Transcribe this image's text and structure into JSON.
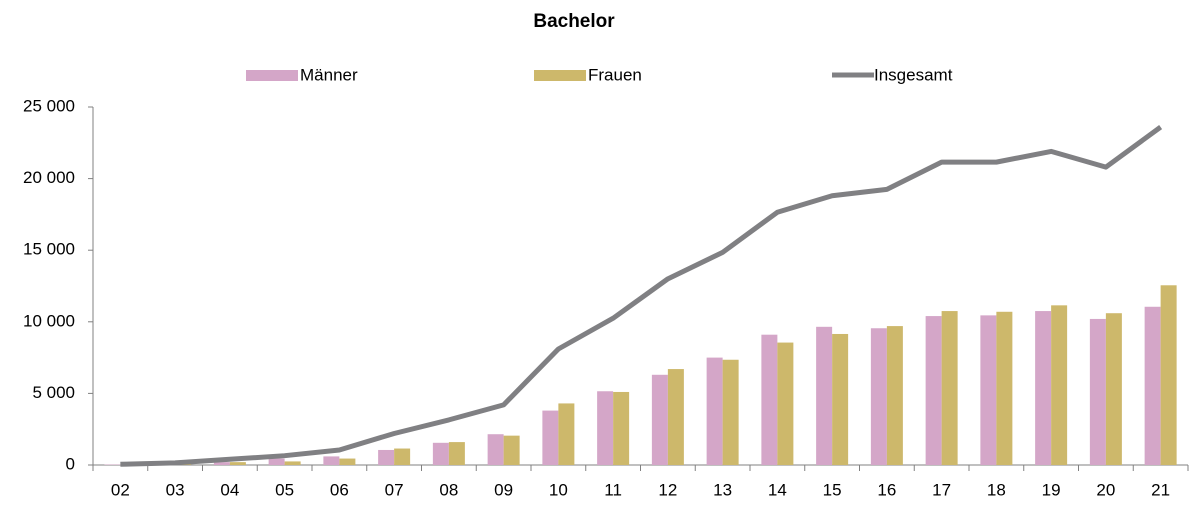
{
  "chart_data": {
    "type": "bar",
    "title": "Bachelor",
    "categories": [
      "02",
      "03",
      "04",
      "05",
      "06",
      "07",
      "08",
      "09",
      "10",
      "11",
      "12",
      "13",
      "14",
      "15",
      "16",
      "17",
      "18",
      "19",
      "20",
      "21"
    ],
    "series": [
      {
        "name": "Männer",
        "color": "#d4a6c8",
        "values": [
          30,
          80,
          200,
          450,
          600,
          1050,
          1550,
          2150,
          3800,
          5150,
          6300,
          7500,
          9100,
          9650,
          9550,
          10400,
          10450,
          10750,
          10200,
          11050
        ]
      },
      {
        "name": "Frauen",
        "color": "#cdb86b",
        "values": [
          20,
          70,
          200,
          250,
          450,
          1150,
          1600,
          2050,
          4300,
          5100,
          6700,
          7350,
          8550,
          9150,
          9700,
          10750,
          10700,
          11150,
          10600,
          12550
        ]
      },
      {
        "name": "Insgesamt",
        "color": "#808083",
        "type": "line",
        "values": [
          50,
          150,
          400,
          650,
          1050,
          2200,
          3150,
          4200,
          8100,
          10250,
          13000,
          14850,
          17650,
          18800,
          19250,
          21150,
          21150,
          21900,
          20800,
          23600
        ]
      }
    ],
    "ylim": [
      0,
      25000
    ],
    "yticks": [
      0,
      {
        "value": 5000,
        "label": "5 000"
      },
      {
        "value": 10000,
        "label": "10 000"
      },
      {
        "value": 15000,
        "label": "15 000"
      },
      {
        "value": 20000,
        "label": "20 000"
      },
      {
        "value": 25000,
        "label": "25 000"
      }
    ],
    "legend": "top"
  }
}
